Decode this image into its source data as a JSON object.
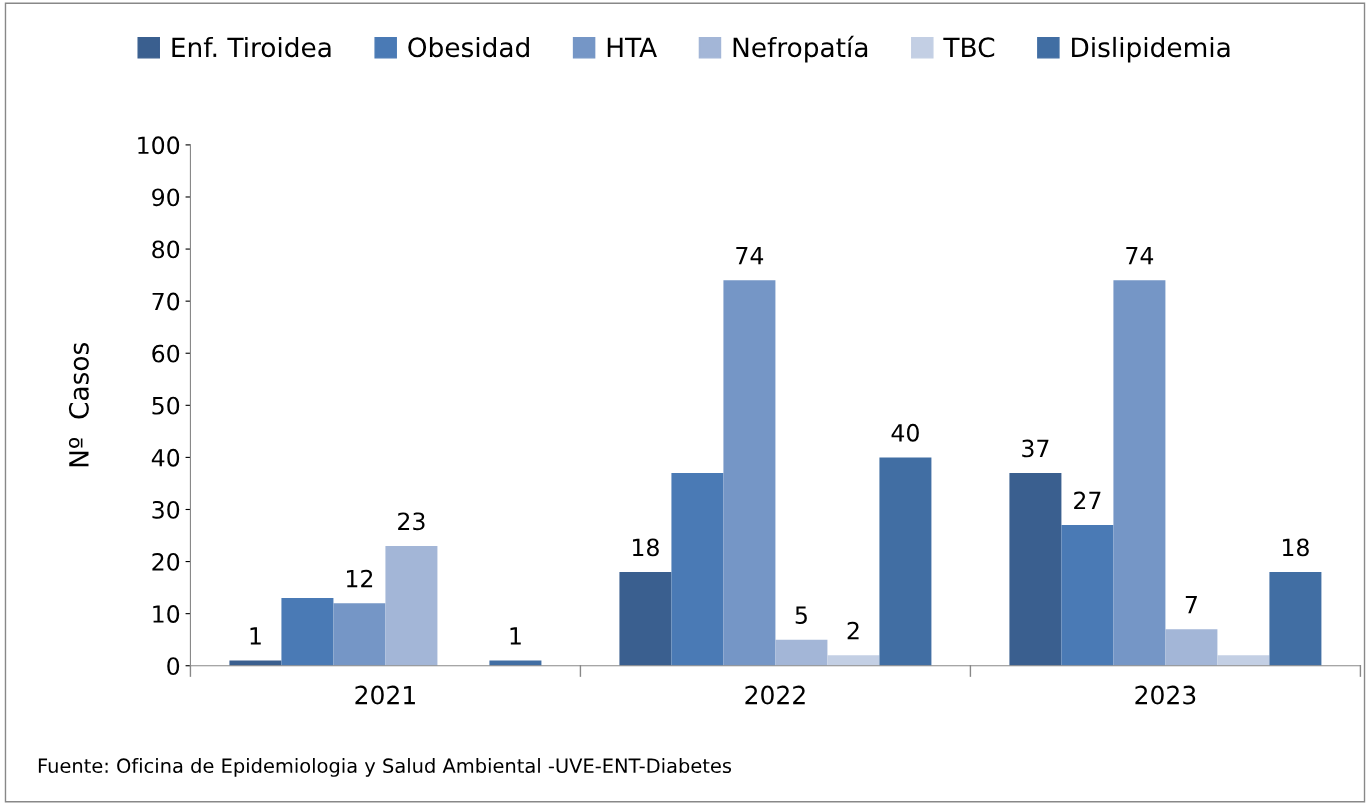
{
  "chart_data": {
    "type": "bar",
    "ylabel": "Nº  Casos",
    "categories": [
      "2021",
      "2022",
      "2023"
    ],
    "series": [
      {
        "name": "Enf. Tiroidea",
        "color": "#3a5f8f",
        "values": [
          1,
          18,
          37
        ],
        "value_labels": [
          "1",
          "18",
          "37"
        ]
      },
      {
        "name": "Obesidad",
        "color": "#4a7ab5",
        "values": [
          13,
          37,
          27
        ],
        "value_labels": [
          null,
          null,
          "27"
        ]
      },
      {
        "name": "HTA",
        "color": "#7596c6",
        "values": [
          12,
          74,
          74
        ],
        "value_labels": [
          "12",
          "74",
          "74"
        ]
      },
      {
        "name": "Nefropatía",
        "color": "#a3b6d7",
        "values": [
          23,
          5,
          7
        ],
        "value_labels": [
          "23",
          "5",
          "7"
        ]
      },
      {
        "name": "TBC",
        "color": "#c3cfe4",
        "values": [
          null,
          2,
          2
        ],
        "value_labels": [
          null,
          "2",
          null
        ]
      },
      {
        "name": "Dislipidemia",
        "color": "#416ea3",
        "values": [
          1,
          40,
          18
        ],
        "value_labels": [
          "1",
          "40",
          "18"
        ]
      }
    ],
    "ylim": [
      0,
      100
    ],
    "yticks": [
      0,
      10,
      20,
      30,
      40,
      50,
      60,
      70,
      80,
      90,
      100
    ],
    "grid": false,
    "legend": "top",
    "annotations": [
      "Fuente: Oficina de Epidemiologia y Salud Ambiental -UVE-ENT-Diabetes"
    ]
  }
}
